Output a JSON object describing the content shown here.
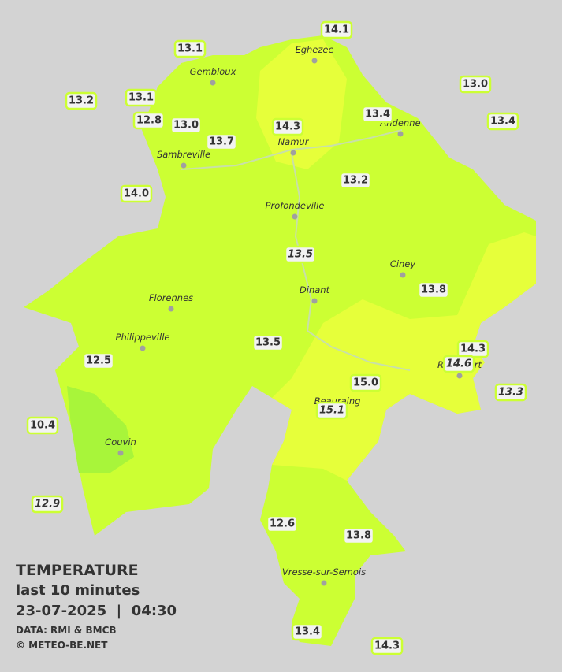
{
  "stations": [
    {
      "label": "13.1"
    },
    {
      "label": "14.1"
    },
    {
      "label": "13.0"
    },
    {
      "label": "13.2"
    },
    {
      "label": "13.1"
    },
    {
      "label": "13.4"
    },
    {
      "label": "13.4"
    },
    {
      "label": "12.8"
    },
    {
      "label": "13.0"
    },
    {
      "label": "14.3"
    },
    {
      "label": "13.7"
    },
    {
      "label": "14.0"
    },
    {
      "label": "13.2"
    },
    {
      "label": "13.5",
      "italic": true
    },
    {
      "label": "13.8"
    },
    {
      "label": "13.5"
    },
    {
      "label": "14.3"
    },
    {
      "label": "14.6",
      "italic": true
    },
    {
      "label": "12.5"
    },
    {
      "label": "15.0"
    },
    {
      "label": "13.3",
      "italic": true
    },
    {
      "label": "15.1",
      "italic": true
    },
    {
      "label": "10.4"
    },
    {
      "label": "12.9",
      "italic": true
    },
    {
      "label": "12.6"
    },
    {
      "label": "13.8"
    },
    {
      "label": "13.4"
    },
    {
      "label": "14.3"
    }
  ],
  "towns": [
    "Eghezee",
    "Gembloux",
    "Andenne",
    "Namur",
    "Sambreville",
    "Profondeville",
    "Ciney",
    "Dinant",
    "Florennes",
    "Philippeville",
    "Rochefort",
    "Beauraing",
    "Couvin",
    "Vresse-sur-Semois"
  ],
  "legend": {
    "title": "TEMPERATURE",
    "period": "last 10 minutes",
    "datetime": "23-07-2025  |  04:30",
    "source": "DATA: RMI & BMCB",
    "copyright": "© METEO-BE.NET"
  }
}
